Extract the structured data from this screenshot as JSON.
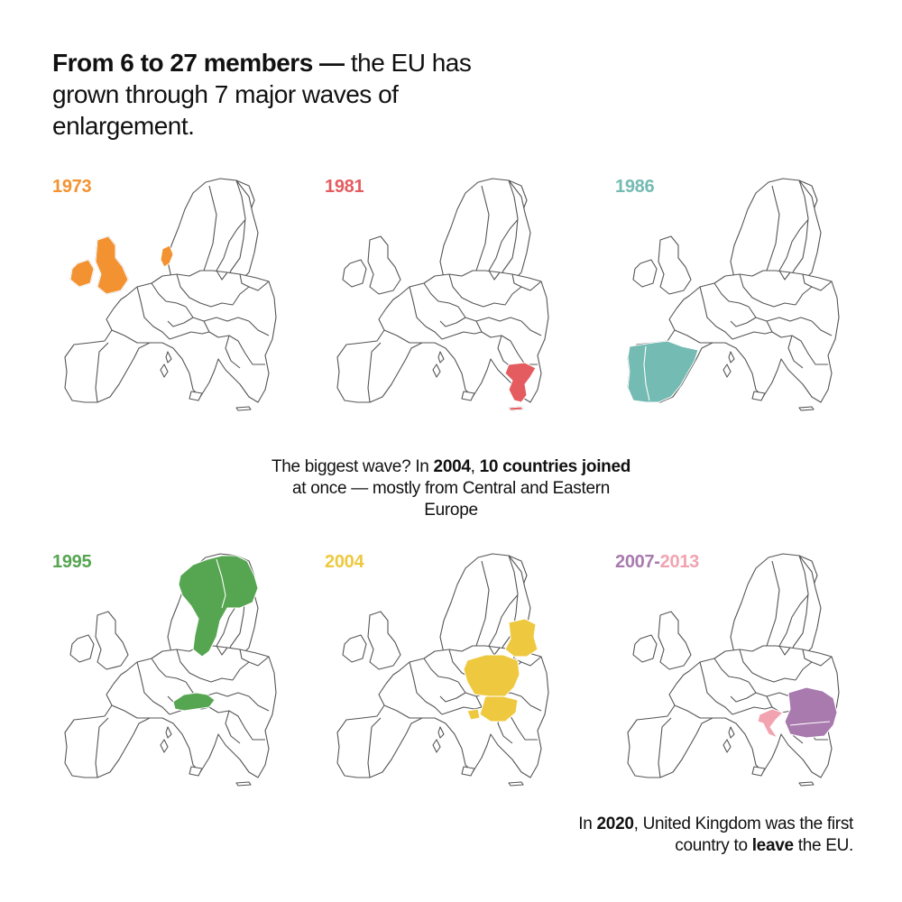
{
  "headline": {
    "bold": "From 6 to 27 members —",
    "rest": " the EU has grown through 7 major waves of enlargement."
  },
  "colors": {
    "y1973": "#F39230",
    "y1981": "#E45C5F",
    "y1986": "#74BBB3",
    "y1995": "#56A551",
    "y2004": "#EEC940",
    "y2007": "#A87AAE",
    "y2013": "#F2A3B0"
  },
  "panels": {
    "p1973": {
      "year": "1973"
    },
    "p1981": {
      "year": "1981"
    },
    "p1986": {
      "year": "1986"
    },
    "p1995": {
      "year": "1995"
    },
    "p2004": {
      "year": "2004"
    },
    "p2007": {
      "year_a": "2007",
      "dash": "-",
      "year_b": "2013"
    }
  },
  "middle": {
    "t1": "The biggest wave? In ",
    "b1": "2004",
    "t2": ", ",
    "b2": "10 countries joined",
    "t3": " at once — mostly from Central and Eastern Europe"
  },
  "footer": {
    "t1": "In ",
    "b1": "2020",
    "t2": ", United Kingdom was the first country to ",
    "b2": "leave",
    "t3": " the EU."
  }
}
